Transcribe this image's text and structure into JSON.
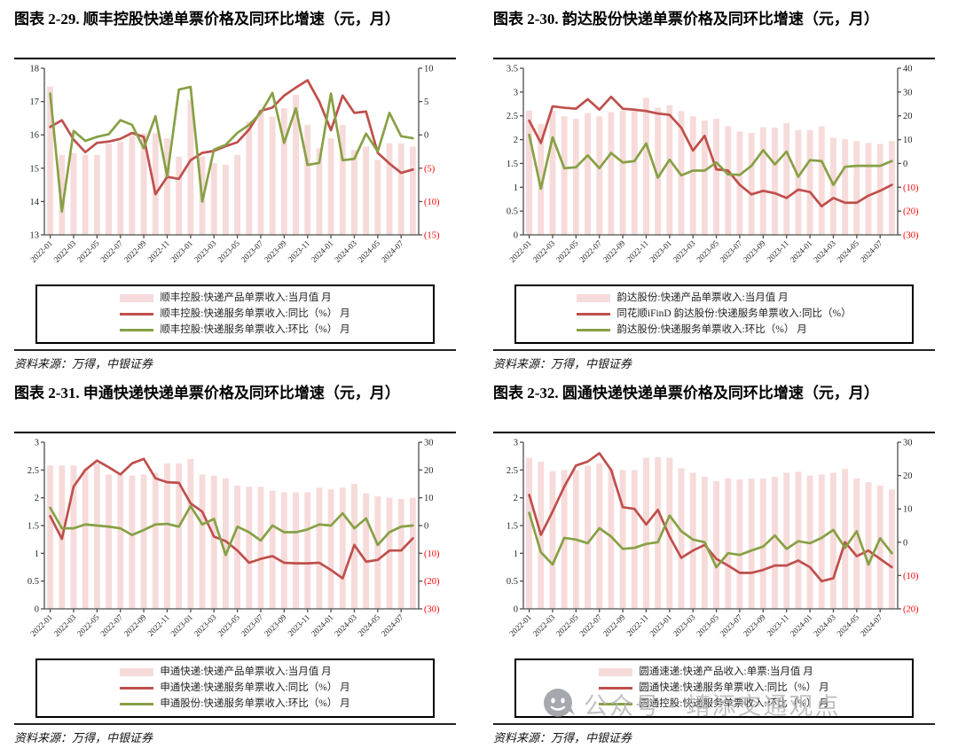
{
  "colors": {
    "bar_fill": "#f6dbda",
    "yoy_line": "#bf4f4c",
    "mom_line": "#87a045",
    "axis": "#4d4d4d",
    "tick_label": "#262626",
    "negative_tick_label": "#fe0000"
  },
  "watermark": {
    "icon": "wechat-icon",
    "text": "公众号 · 靖添交通观点"
  },
  "figures": [
    {
      "title": "图表 2-29. 顺丰控股快递单票价格及同环比增速（元，月）",
      "source": "资料来源：万得，中银证券",
      "chart_data": {
        "type": "bar+line",
        "legend_position": "bottom-box",
        "grid": false,
        "categories": [
          "2022-01",
          "2022-02",
          "2022-03",
          "2022-04",
          "2022-05",
          "2022-06",
          "2022-07",
          "2022-08",
          "2022-09",
          "2022-10",
          "2022-11",
          "2022-12",
          "2023-01",
          "2023-02",
          "2023-03",
          "2023-04",
          "2023-05",
          "2023-06",
          "2023-07",
          "2023-08",
          "2023-09",
          "2023-10",
          "2023-11",
          "2023-12",
          "2024-01",
          "2024-02",
          "2024-03",
          "2024-04",
          "2024-05",
          "2024-06",
          "2024-07",
          "2024-08"
        ],
        "x_tick_every": 2,
        "left_axis": {
          "min": 13,
          "max": 18,
          "ticks": [
            18,
            17,
            16,
            15,
            14,
            13
          ]
        },
        "right_axis": {
          "min": -15,
          "max": 10,
          "ticks": [
            10,
            5,
            0,
            -5,
            -10,
            -15
          ]
        },
        "bar_series": {
          "name": "顺丰控股:快递产品单票收入:当月值 月",
          "axis": "left",
          "values": [
            17.45,
            15.4,
            15.45,
            15.4,
            15.4,
            15.75,
            15.8,
            16.0,
            16.05,
            16.05,
            15.9,
            15.35,
            17.05,
            15.35,
            15.15,
            15.1,
            15.4,
            16.4,
            16.75,
            16.55,
            16.8,
            17.2,
            16.3,
            15.6,
            15.9,
            16.3,
            15.55,
            15.65,
            15.25,
            15.75,
            15.75,
            15.65
          ]
        },
        "line_series": [
          {
            "name": "顺丰控股:快递服务单票收入:同比（%） 月",
            "color_key": "yoy_line",
            "axis": "right",
            "values": [
              1.2,
              2.2,
              -0.7,
              -2.6,
              -1.2,
              -1.0,
              -0.6,
              0.3,
              -0.3,
              -8.9,
              -6.3,
              -6.6,
              -3.8,
              -2.7,
              -2.4,
              -1.7,
              -1.1,
              0.8,
              3.6,
              4.1,
              5.9,
              7.1,
              8.2,
              5.0,
              0.7,
              5.9,
              3.3,
              3.5,
              -2.7,
              -4.3,
              -5.7,
              -5.2
            ]
          },
          {
            "name": "顺丰控股:快递服务单票收入:环比（%） 月",
            "color_key": "mom_line",
            "axis": "right",
            "values": [
              6.2,
              -11.5,
              0.6,
              -0.9,
              -0.3,
              0.1,
              2.2,
              1.5,
              -2.0,
              2.8,
              -6.2,
              6.8,
              7.2,
              -10.0,
              -2.2,
              -1.5,
              0.3,
              1.5,
              3.3,
              6.3,
              -1.2,
              4.0,
              -4.5,
              -4.2,
              6.2,
              -3.8,
              -3.6,
              0.2,
              -2.5,
              3.3,
              -0.2,
              -0.5
            ]
          }
        ]
      }
    },
    {
      "title": "图表 2-30. 韵达股份快递单票价格及同环比增速（元，月）",
      "source": "资料来源：万得，中银证券",
      "chart_data": {
        "type": "bar+line",
        "legend_position": "bottom-box",
        "grid": false,
        "categories": [
          "2022-01",
          "2022-02",
          "2022-03",
          "2022-04",
          "2022-05",
          "2022-06",
          "2022-07",
          "2022-08",
          "2022-09",
          "2022-10",
          "2022-11",
          "2022-12",
          "2023-01",
          "2023-02",
          "2023-03",
          "2023-04",
          "2023-05",
          "2023-06",
          "2023-07",
          "2023-08",
          "2023-09",
          "2023-10",
          "2023-11",
          "2023-12",
          "2024-01",
          "2024-02",
          "2024-03",
          "2024-04",
          "2024-05",
          "2024-06",
          "2024-07",
          "2024-08"
        ],
        "x_tick_every": 2,
        "left_axis": {
          "min": 0,
          "max": 3.5,
          "ticks": [
            3.5,
            3,
            2.5,
            2,
            1.5,
            1,
            0.5,
            0
          ]
        },
        "right_axis": {
          "min": -30,
          "max": 40,
          "ticks": [
            40,
            30,
            20,
            10,
            0,
            -10,
            -20,
            -30
          ]
        },
        "bar_series": {
          "name": "韵达股份:快递产品单票收入:当月值 月",
          "axis": "left",
          "values": [
            2.61,
            2.33,
            2.6,
            2.49,
            2.44,
            2.56,
            2.49,
            2.58,
            2.61,
            2.6,
            2.88,
            2.67,
            2.72,
            2.6,
            2.49,
            2.4,
            2.44,
            2.28,
            2.17,
            2.14,
            2.26,
            2.25,
            2.35,
            2.2,
            2.2,
            2.28,
            2.04,
            2.01,
            1.97,
            1.93,
            1.91,
            1.97
          ]
        },
        "line_series": [
          {
            "name": "同花顺iFinD 韵达股份:快递服务单票收入:同比（%）",
            "color_key": "yoy_line",
            "axis": "right",
            "values": [
              18,
              8.6,
              24,
              23.4,
              23,
              27,
              22.6,
              28,
              23,
              22.6,
              22,
              21,
              20.4,
              15,
              5.4,
              11.6,
              -2.5,
              -3,
              -9,
              -13,
              -11.5,
              -12.5,
              -14.5,
              -11,
              -12,
              -18,
              -14.5,
              -16.5,
              -16.5,
              -13.5,
              -11.5,
              -9
            ]
          },
          {
            "name": "韵达股份:快递服务单票收入:环比（%） 月",
            "color_key": "mom_line",
            "axis": "right",
            "values": [
              12,
              -10.6,
              11,
              -2,
              -1.6,
              3.4,
              -2,
              4.4,
              0.4,
              1,
              8.4,
              -6,
              1.6,
              -5,
              -3,
              -3,
              0.4,
              -4.6,
              -4.8,
              -1,
              5.6,
              -0.4,
              5,
              -5.6,
              1.4,
              1,
              -9,
              -1.4,
              -1,
              -1,
              -1,
              1
            ]
          }
        ]
      }
    },
    {
      "title": "图表 2-31. 申通快递快递单票价格及同环比增速（元，月）",
      "source": "资料来源：万得，中银证券",
      "chart_data": {
        "type": "bar+line",
        "legend_position": "bottom-box",
        "grid": false,
        "categories": [
          "2022-01",
          "2022-02",
          "2022-03",
          "2022-04",
          "2022-05",
          "2022-06",
          "2022-07",
          "2022-08",
          "2022-09",
          "2022-10",
          "2022-11",
          "2022-12",
          "2023-01",
          "2023-02",
          "2023-03",
          "2023-04",
          "2023-05",
          "2023-06",
          "2023-07",
          "2023-08",
          "2023-09",
          "2023-10",
          "2023-11",
          "2023-12",
          "2024-01",
          "2024-02",
          "2024-03",
          "2024-04",
          "2024-05",
          "2024-06",
          "2024-07",
          "2024-08"
        ],
        "x_tick_every": 2,
        "left_axis": {
          "min": 0,
          "max": 3,
          "ticks": [
            3,
            2.5,
            2,
            1.5,
            1,
            0.5,
            0
          ]
        },
        "right_axis": {
          "min": -30,
          "max": 30,
          "ticks": [
            30,
            20,
            10,
            0,
            -10,
            -20,
            -30
          ]
        },
        "bar_series": {
          "name": "申通快递:快递产品单票收入:当月值 月",
          "axis": "left",
          "values": [
            2.58,
            2.58,
            2.58,
            2.52,
            2.62,
            2.42,
            2.42,
            2.4,
            2.42,
            2.45,
            2.62,
            2.62,
            2.7,
            2.42,
            2.4,
            2.35,
            2.22,
            2.2,
            2.2,
            2.13,
            2.1,
            2.1,
            2.1,
            2.18,
            2.15,
            2.18,
            2.25,
            2.08,
            2.03,
            2.0,
            1.98,
            2.0
          ]
        },
        "line_series": [
          {
            "name": "申通快递:快递服务单票收入:同比（%） 月",
            "color_key": "yoy_line",
            "axis": "right",
            "values": [
              3.4,
              -4.8,
              14,
              20,
              23.4,
              21,
              18.4,
              22.4,
              24,
              17,
              15.6,
              15.4,
              8,
              5,
              -4,
              -5.6,
              -9,
              -13.4,
              -12,
              -11,
              -13.4,
              -13.6,
              -13.6,
              -13.4,
              -16,
              -19,
              -7,
              -13,
              -12.4,
              -9,
              -9,
              -4.6
            ]
          },
          {
            "name": "申通股份:快递服务单票收入:环比（%） 月",
            "color_key": "mom_line",
            "axis": "right",
            "values": [
              6.4,
              -1,
              -1,
              0.4,
              0,
              -0.4,
              -1,
              -3.4,
              -1.6,
              0.4,
              0.6,
              -0.4,
              7,
              0.4,
              2.4,
              -10.6,
              -0.4,
              -2.4,
              -5.4,
              0,
              -2.4,
              -2.4,
              -1.4,
              0.4,
              0,
              4.4,
              -1,
              2.6,
              -7,
              -2.4,
              -0.4,
              0
            ]
          }
        ]
      }
    },
    {
      "title": "图表 2-32. 圆通快递快递单票价格及同环比增速（元，月）",
      "source": "资料来源：万得，中银证券",
      "chart_data": {
        "type": "bar+line",
        "legend_position": "bottom-box",
        "grid": false,
        "categories": [
          "2022-01",
          "2022-02",
          "2022-03",
          "2022-04",
          "2022-05",
          "2022-06",
          "2022-07",
          "2022-08",
          "2022-09",
          "2022-10",
          "2022-11",
          "2022-12",
          "2023-01",
          "2023-02",
          "2023-03",
          "2023-04",
          "2023-05",
          "2023-06",
          "2023-07",
          "2023-08",
          "2023-09",
          "2023-10",
          "2023-11",
          "2023-12",
          "2024-01",
          "2024-02",
          "2024-03",
          "2024-04",
          "2024-05",
          "2024-06",
          "2024-07",
          "2024-08"
        ],
        "x_tick_every": 2,
        "left_axis": {
          "min": 0,
          "max": 3,
          "ticks": [
            3,
            2.5,
            2,
            1.5,
            1,
            0.5,
            0
          ]
        },
        "right_axis": {
          "min": -20,
          "max": 30,
          "ticks": [
            30,
            20,
            10,
            0,
            -10,
            -20
          ]
        },
        "bar_series": {
          "name": "圆通速递:快递产品收入:单票:当月值 月",
          "axis": "left",
          "values": [
            2.72,
            2.65,
            2.48,
            2.5,
            2.5,
            2.58,
            2.62,
            2.52,
            2.5,
            2.5,
            2.72,
            2.73,
            2.72,
            2.53,
            2.45,
            2.38,
            2.3,
            2.35,
            2.33,
            2.35,
            2.35,
            2.38,
            2.45,
            2.47,
            2.4,
            2.42,
            2.45,
            2.52,
            2.35,
            2.28,
            2.22,
            2.15
          ]
        },
        "line_series": [
          {
            "name": "圆通快递:快递服务单票收入:同比（%） 月",
            "color_key": "yoy_line",
            "axis": "right",
            "values": [
              14.2,
              2.2,
              9.2,
              16.7,
              23,
              24.2,
              26.7,
              21.7,
              10.5,
              10,
              5.3,
              9.7,
              1.7,
              -4.7,
              -2.5,
              -0.8,
              -5,
              -7,
              -9.2,
              -9.2,
              -8.3,
              -7,
              -7,
              -5.5,
              -7.5,
              -11.7,
              -10.8,
              0,
              -4.2,
              -2.5,
              -5,
              -7.5
            ]
          },
          {
            "name": "圆通控股:快递服务单票收入:环比（%） 月",
            "color_key": "mom_line",
            "axis": "right",
            "values": [
              8.8,
              -3,
              -6.7,
              1.3,
              0.8,
              -0.3,
              4.2,
              1.7,
              -2,
              -1.7,
              -0.5,
              0,
              8,
              3.3,
              0.8,
              0,
              -7.5,
              -3.3,
              -3.8,
              -2.5,
              -1.3,
              2,
              -2,
              0.3,
              -0.3,
              1.3,
              3.7,
              -1.7,
              3.3,
              -6.7,
              1.2,
              -3.3
            ]
          }
        ]
      }
    }
  ]
}
